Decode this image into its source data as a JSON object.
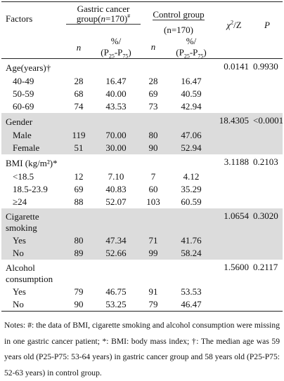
{
  "header": {
    "factors": "Factors",
    "gastric_group": "Gastric cancer group(",
    "gastric_n": "n",
    "gastric_count": "=170)",
    "gastric_mark": "#",
    "control_group": "Control group",
    "control_n": "(n=170)",
    "chi_label": "χ",
    "chi_sup": "2",
    "chi_tail": "/Z",
    "p_label": "P",
    "n_label": "n",
    "pct_label": "%/",
    "pct_range": "(P25-P75)"
  },
  "sections": [
    {
      "label": "Age(years)†",
      "stat": "0.0141",
      "p": "0.9930",
      "shaded": false,
      "rows": [
        {
          "label": "40-49",
          "gn": "28",
          "gp": "16.47",
          "cn": "28",
          "cp": "16.47"
        },
        {
          "label": "50-59",
          "gn": "68",
          "gp": "40.00",
          "cn": "69",
          "cp": "40.59"
        },
        {
          "label": "60-69",
          "gn": "74",
          "gp": "43.53",
          "cn": "73",
          "cp": "42.94"
        }
      ]
    },
    {
      "label": "Gender",
      "stat": "18.4305",
      "p": "<0.0001",
      "shaded": true,
      "rows": [
        {
          "label": "Male",
          "gn": "119",
          "gp": "70.00",
          "cn": "80",
          "cp": "47.06"
        },
        {
          "label": "Female",
          "gn": "51",
          "gp": "30.00",
          "cn": "90",
          "cp": "52.94"
        }
      ]
    },
    {
      "label": "BMI (kg/m²)*",
      "stat": "3.1188",
      "p": "0.2103",
      "shaded": false,
      "rows": [
        {
          "label": "<18.5",
          "gn": "12",
          "gp": "7.10",
          "cn": "7",
          "cp": "4.12"
        },
        {
          "label": "18.5-23.9",
          "gn": "69",
          "gp": "40.83",
          "cn": "60",
          "cp": "35.29"
        },
        {
          "label": "≥24",
          "gn": "88",
          "gp": "52.07",
          "cn": "103",
          "cp": "60.59"
        }
      ]
    },
    {
      "label": "Cigarette smoking",
      "stat": "1.0654",
      "p": "0.3020",
      "shaded": true,
      "rows": [
        {
          "label": "Yes",
          "gn": "80",
          "gp": "47.34",
          "cn": "71",
          "cp": "41.76"
        },
        {
          "label": "No",
          "gn": "89",
          "gp": "52.66",
          "cn": "99",
          "cp": "58.24"
        }
      ]
    },
    {
      "label": "Alcohol consumption",
      "stat": "1.5600",
      "p": "0.2117",
      "shaded": false,
      "rows": [
        {
          "label": "Yes",
          "gn": "79",
          "gp": "46.75",
          "cn": "91",
          "cp": "53.53"
        },
        {
          "label": "No",
          "gn": "90",
          "gp": "53.25",
          "cn": "79",
          "cp": "46.47"
        }
      ]
    }
  ],
  "notes": "Notes: #: the data of BMI, cigarette smoking and alcohol consumption were missing in one gastric cancer patient; *: BMI: body mass index; †: The median age was 59 years old (P25-P75: 53-64 years) in gastric cancer group and 58 years old (P25-P75: 52-63 years) in control group."
}
